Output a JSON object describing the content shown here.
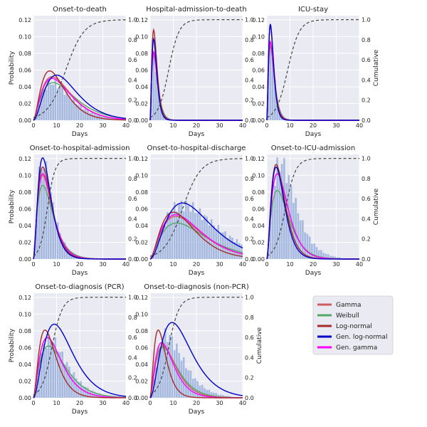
{
  "chart_data": {
    "type": "line",
    "shared": {
      "xlabel": "Days",
      "ylabel_left": "Probability",
      "ylabel_right": "Cumulative",
      "xlim": [
        0,
        40
      ],
      "ylim_left": [
        0,
        0.125
      ],
      "ylim_right": [
        0,
        1.04
      ],
      "x_ticks": [
        0,
        10,
        20,
        30,
        40
      ],
      "y_ticks_left": [
        "0.00",
        "0.02",
        "0.04",
        "0.06",
        "0.08",
        "0.10",
        "0.12"
      ],
      "y_ticks_right": [
        "0.0",
        "0.2",
        "0.4",
        "0.6",
        "0.8",
        "1.0"
      ]
    },
    "legend": [
      {
        "name": "Gamma",
        "color": "#cd5c5c"
      },
      {
        "name": "Weibull",
        "color": "#55a868"
      },
      {
        "name": "Log-normal",
        "color": "#a52a2a"
      },
      {
        "name": "Gen. log-normal",
        "color": "#0000cd"
      },
      {
        "name": "Gen. gamma",
        "color": "#ff00ff"
      }
    ],
    "panels": [
      {
        "title": "Onset-to-death",
        "peaks": {
          "Gamma": [
            8,
            0.052
          ],
          "Weibull": [
            8.5,
            0.045
          ],
          "Log-normal": [
            7,
            0.059
          ],
          "Gen. log-normal": [
            10,
            0.054
          ],
          "Gen. gamma": [
            8,
            0.05
          ]
        },
        "hist_peak": [
          8,
          0.045
        ],
        "cdf_median": 14
      },
      {
        "title": "Hospital-admission-to-death",
        "peaks": {
          "Gamma": [
            1.5,
            0.08
          ],
          "Weibull": [
            1.5,
            0.078
          ],
          "Log-normal": [
            1.5,
            0.108
          ],
          "Gen. log-normal": [
            1.5,
            0.097
          ],
          "Gen. gamma": [
            1.5,
            0.082
          ]
        },
        "hist_peak": [
          1.5,
          0.08
        ],
        "cdf_median": 8
      },
      {
        "title": "ICU-stay",
        "peaks": {
          "Gamma": [
            1.5,
            0.092
          ],
          "Weibull": [
            1.5,
            0.088
          ],
          "Log-normal": [
            1.5,
            0.113
          ],
          "Gen. log-normal": [
            1.5,
            0.115
          ],
          "Gen. gamma": [
            1.5,
            0.094
          ]
        },
        "hist_peak": [
          1.5,
          0.1
        ],
        "cdf_median": 9
      },
      {
        "title": "Onset-to-hospital-admission",
        "peaks": {
          "Gamma": [
            4,
            0.1
          ],
          "Weibull": [
            4,
            0.088
          ],
          "Log-normal": [
            4,
            0.11
          ],
          "Gen. log-normal": [
            4,
            0.121
          ],
          "Gen. gamma": [
            4,
            0.102
          ]
        },
        "hist_peak": [
          4,
          0.115
        ],
        "cdf_median": 6
      },
      {
        "title": "Onset-to-hospital-discharge",
        "peaks": {
          "Gamma": [
            11,
            0.051
          ],
          "Weibull": [
            11.5,
            0.043
          ],
          "Log-normal": [
            10,
            0.056
          ],
          "Gen. log-normal": [
            14,
            0.067
          ],
          "Gen. gamma": [
            11,
            0.053
          ]
        },
        "hist_peak": [
          14,
          0.065
        ],
        "cdf_median": 14
      },
      {
        "title": "Onset-to-ICU-admission",
        "peaks": {
          "Gamma": [
            4.5,
            0.102
          ],
          "Weibull": [
            4.5,
            0.082
          ],
          "Log-normal": [
            4,
            0.113
          ],
          "Gen. log-normal": [
            4,
            0.11
          ],
          "Gen. gamma": [
            4.5,
            0.102
          ]
        },
        "hist_peak": [
          6,
          0.115
        ],
        "cdf_median": 8
      },
      {
        "title": "Onset-to-diagnosis (PCR)",
        "peaks": {
          "Gamma": [
            6,
            0.072
          ],
          "Weibull": [
            6.5,
            0.062
          ],
          "Log-normal": [
            5,
            0.081
          ],
          "Gen. log-normal": [
            9,
            0.088
          ],
          "Gen. gamma": [
            6,
            0.072
          ]
        },
        "hist_peak": [
          7,
          0.07
        ],
        "cdf_median": 8
      },
      {
        "title": "Onset-to-diagnosis (non-PCR)",
        "peaks": {
          "Gamma": [
            5.5,
            0.062
          ],
          "Weibull": [
            5.5,
            0.06
          ],
          "Log-normal": [
            3.5,
            0.081
          ],
          "Gen. log-normal": [
            9.5,
            0.09
          ],
          "Gen. gamma": [
            5,
            0.066
          ]
        },
        "hist_peak": [
          7,
          0.075
        ],
        "cdf_median": 8
      }
    ]
  }
}
